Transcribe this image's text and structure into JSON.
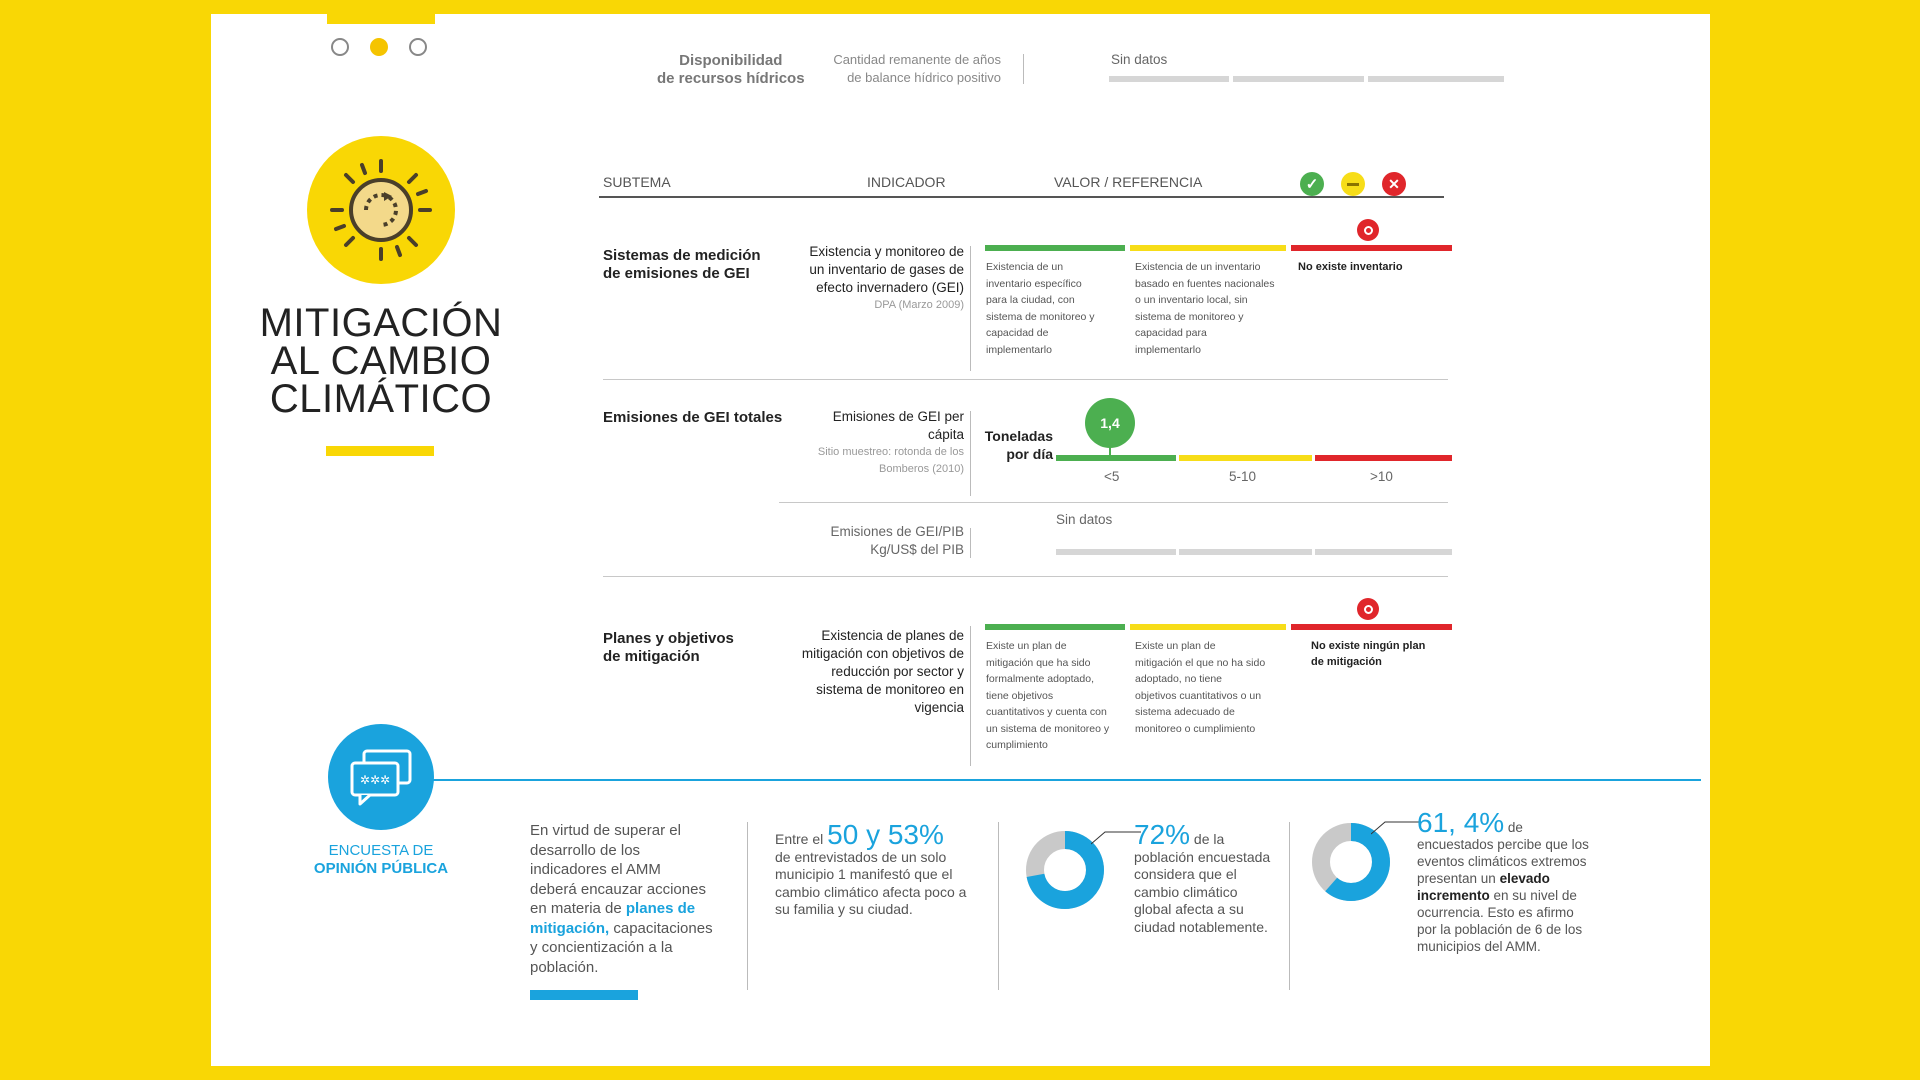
{
  "top": {
    "availability_line1": "Disponibilidad",
    "availability_line2": "de recursos hídricos",
    "remaining_line1": "Cantidad remanente de años",
    "remaining_line2": "de balance hídrico positivo",
    "no_data": "Sin datos"
  },
  "section": {
    "title_line1": "MITIGACIÓN",
    "title_line2": "AL CAMBIO",
    "title_line3": "CLIMÁTICO"
  },
  "table_header": {
    "subtema": "SUBTEMA",
    "indicador": "INDICADOR",
    "valor": "VALOR / REFERENCIA"
  },
  "rows": {
    "r1": {
      "subtema_1": "Sistemas de medición",
      "subtema_2": "de emisiones de GEI",
      "ind_1": "Existencia y monitoreo de",
      "ind_2": "un inventario de gases de",
      "ind_3": "efecto invernadero (GEI)",
      "src": "DPA (Marzo 2009)",
      "green": [
        "Existencia de un",
        "inventario específico",
        "para la ciudad, con",
        "sistema de monitoreo y",
        "capacidad de",
        "implementarlo"
      ],
      "yellow": [
        "Existencia de un inventario",
        "basado en fuentes nacionales",
        "o un inventario local, sin",
        "sistema de monitoreo y",
        "capacidad para",
        "implementarlo"
      ],
      "red": "No existe inventario"
    },
    "r2": {
      "subtema": "Emisiones de GEI totales",
      "ind_1": "Emisiones de GEI per",
      "ind_2": "cápita",
      "src_1": "Sitio muestreo: rotonda de los",
      "src_2": "Bomberos (2010)",
      "unit_1": "Toneladas",
      "unit_2": "por día",
      "value": "1,4",
      "scale": [
        "<5",
        "5-10",
        ">10"
      ]
    },
    "r3": {
      "ind_1": "Emisiones de GEI/PIB",
      "ind_2": "Kg/US$ del PIB",
      "no_data": "Sin datos"
    },
    "r4": {
      "subtema_1": "Planes y objetivos",
      "subtema_2": "de mitigación",
      "ind_1": "Existencia de planes de",
      "ind_2": "mitigación con objetivos de",
      "ind_3": "reducción por sector y",
      "ind_4": "sistema de monitoreo en",
      "ind_5": "vigencia",
      "green": [
        "Existe un plan de",
        "mitigación que ha sido",
        "formalmente adoptado,",
        "tiene objetivos",
        "cuantitativos y cuenta con",
        "un sistema de monitoreo y",
        "cumplimiento"
      ],
      "yellow": [
        "Existe un plan de",
        "mitigación el que no ha sido",
        "adoptado, no tiene",
        "objetivos cuantitativos o un",
        "sistema adecuado de",
        "monitoreo o cumplimiento"
      ],
      "red_1": "No existe ningún plan",
      "red_2": "de mitigación"
    }
  },
  "survey": {
    "label_1": "ENCUESTA DE",
    "label_2": "OPINIÓN PÚBLICA",
    "intro": [
      "En virtud de superar el",
      "desarrollo de los",
      "indicadores el AMM",
      "deberá encauzar acciones",
      "en materia de ",
      "planes de",
      "mitigación,",
      " capacitaciones",
      "y concientización a la",
      "población."
    ],
    "s1": {
      "pre": "Entre el ",
      "pct": "50 y 53%",
      "lines": [
        "de entrevistados de un solo",
        "municipio 1 manifestó que el",
        "cambio climático afecta poco a",
        "su familia y su ciudad."
      ]
    },
    "s2": {
      "pct": "72%",
      "suffix": " de la",
      "lines": [
        "población encuestada",
        "considera que el",
        "cambio climático",
        "global afecta a su",
        "ciudad notablemente."
      ],
      "value": 72
    },
    "s3": {
      "pct": "61, 4%",
      "suffix": " de",
      "lines": [
        "encuestados percibe que los",
        "eventos climáticos extremos",
        "presentan un "
      ],
      "bold_1": "elevado",
      "bold_2": "incremento",
      "after_bold": " en su nivel de",
      "lines2": [
        "ocurrencia. Esto es afirmo",
        "por la población de 6 de los",
        "municipios del AMM."
      ],
      "value": 61.4
    }
  },
  "colors": {
    "yellow": "#f9d705",
    "blue": "#1aa3dd",
    "green": "#4caf50",
    "red": "#e0262b"
  }
}
